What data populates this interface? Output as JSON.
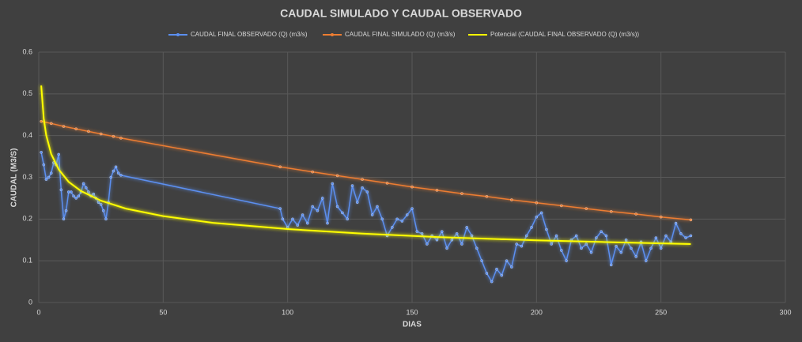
{
  "chart_data": {
    "type": "line",
    "title": "CAUDAL SIMULADO Y CAUDAL OBSERVADO",
    "x_label": "DIAS",
    "y_label": "CAUDAL (M3/S)",
    "xlim": [
      0,
      300
    ],
    "xticks": [
      0,
      50,
      100,
      150,
      200,
      250,
      300
    ],
    "ylim": [
      0,
      0.6
    ],
    "yticks": [
      0,
      0.1,
      0.2,
      0.3,
      0.4,
      0.5,
      0.6
    ],
    "grid": true,
    "legend": "top",
    "series": [
      {
        "name": "CAUDAL FINAL OBSERVADO (Q) (m3/s)",
        "color": "#5b8ff0",
        "markers": true,
        "x": [
          1,
          2,
          3,
          4,
          5,
          6,
          7,
          8,
          9,
          10,
          11,
          12,
          13,
          14,
          15,
          16,
          17,
          18,
          19,
          20,
          21,
          22,
          23,
          24,
          25,
          26,
          27,
          28,
          29,
          30,
          31,
          32,
          33,
          97,
          98,
          100,
          102,
          104,
          106,
          108,
          110,
          112,
          114,
          116,
          118,
          120,
          122,
          124,
          126,
          128,
          130,
          132,
          134,
          136,
          138,
          140,
          142,
          144,
          146,
          148,
          150,
          152,
          154,
          156,
          158,
          160,
          162,
          164,
          166,
          168,
          170,
          172,
          174,
          176,
          178,
          180,
          182,
          184,
          186,
          188,
          190,
          192,
          194,
          196,
          198,
          200,
          202,
          204,
          206,
          208,
          210,
          212,
          214,
          216,
          218,
          220,
          222,
          224,
          226,
          228,
          230,
          232,
          234,
          236,
          238,
          240,
          242,
          244,
          246,
          248,
          250,
          252,
          254,
          256,
          258,
          260,
          262
        ],
        "values": [
          0.36,
          0.33,
          0.295,
          0.3,
          0.31,
          0.335,
          0.33,
          0.355,
          0.27,
          0.2,
          0.22,
          0.265,
          0.265,
          0.255,
          0.25,
          0.255,
          0.265,
          0.285,
          0.275,
          0.265,
          0.255,
          0.26,
          0.25,
          0.24,
          0.235,
          0.22,
          0.2,
          0.24,
          0.3,
          0.315,
          0.325,
          0.31,
          0.305,
          0.225,
          0.2,
          0.18,
          0.2,
          0.185,
          0.21,
          0.19,
          0.23,
          0.22,
          0.25,
          0.19,
          0.285,
          0.23,
          0.215,
          0.2,
          0.28,
          0.24,
          0.275,
          0.265,
          0.21,
          0.23,
          0.2,
          0.16,
          0.18,
          0.2,
          0.195,
          0.21,
          0.225,
          0.17,
          0.165,
          0.14,
          0.16,
          0.15,
          0.17,
          0.13,
          0.15,
          0.165,
          0.14,
          0.18,
          0.16,
          0.13,
          0.1,
          0.07,
          0.05,
          0.08,
          0.065,
          0.1,
          0.085,
          0.14,
          0.135,
          0.16,
          0.18,
          0.205,
          0.215,
          0.175,
          0.14,
          0.16,
          0.125,
          0.1,
          0.15,
          0.16,
          0.13,
          0.14,
          0.12,
          0.155,
          0.17,
          0.16,
          0.09,
          0.135,
          0.12,
          0.15,
          0.13,
          0.11,
          0.145,
          0.1,
          0.13,
          0.155,
          0.13,
          0.16,
          0.145,
          0.19,
          0.165,
          0.155,
          0.16
        ]
      },
      {
        "name": "CAUDAL FINAL SIMULADO (Q) (m3/s)",
        "color": "#ed7d31",
        "markers": true,
        "x": [
          1,
          5,
          10,
          15,
          20,
          25,
          30,
          33,
          97,
          110,
          120,
          130,
          140,
          150,
          160,
          170,
          180,
          190,
          200,
          210,
          220,
          230,
          240,
          250,
          262
        ],
        "values": [
          0.434,
          0.429,
          0.422,
          0.416,
          0.41,
          0.404,
          0.398,
          0.394,
          0.325,
          0.313,
          0.304,
          0.295,
          0.286,
          0.277,
          0.269,
          0.261,
          0.254,
          0.246,
          0.239,
          0.232,
          0.225,
          0.218,
          0.212,
          0.205,
          0.198
        ]
      },
      {
        "name": "Potencial (CAUDAL FINAL OBSERVADO (Q) (m3/s))",
        "color": "#ffff00",
        "markers": false,
        "x": [
          1,
          2,
          3,
          5,
          8,
          12,
          17,
          25,
          35,
          50,
          70,
          100,
          130,
          160,
          200,
          240,
          262
        ],
        "values": [
          0.52,
          0.441,
          0.401,
          0.356,
          0.319,
          0.289,
          0.267,
          0.244,
          0.225,
          0.207,
          0.191,
          0.176,
          0.165,
          0.157,
          0.149,
          0.143,
          0.14
        ]
      }
    ]
  }
}
